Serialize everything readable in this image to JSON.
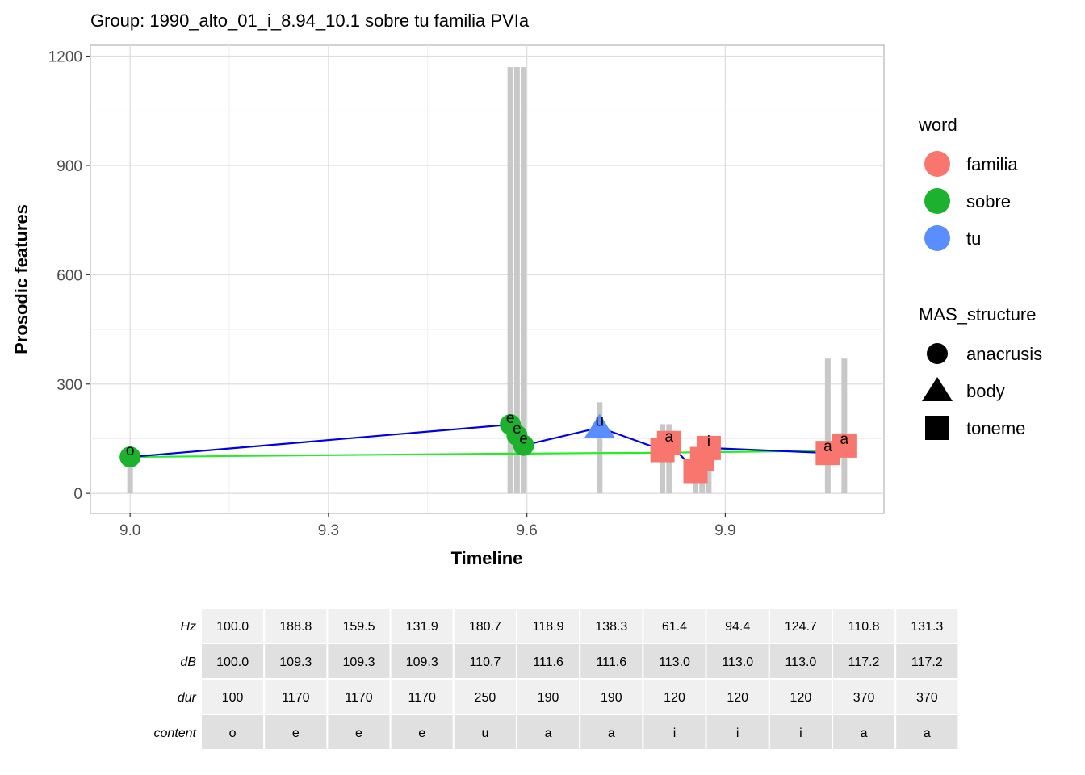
{
  "chart_data": {
    "type": "scatter",
    "title": "Group: 1990_alto_01_i_8.94_10.1 sobre tu familia PVIa",
    "xlabel": "Timeline",
    "ylabel": "Prosodic features",
    "xlim": [
      8.94,
      10.14
    ],
    "ylim": [
      -55,
      1230
    ],
    "xticks": [
      9.0,
      9.3,
      9.6,
      9.9
    ],
    "xtick_labels": [
      "9.0",
      "9.3",
      "9.6",
      "9.9"
    ],
    "yticks": [
      0,
      300,
      600,
      900,
      1200
    ],
    "ytick_labels": [
      "0",
      "300",
      "600",
      "900",
      "1200"
    ],
    "grid": true,
    "points": [
      {
        "x": 9.0,
        "hz": 100.0,
        "db": 100.0,
        "dur": 100,
        "content": "o",
        "word": "sobre",
        "structure": "anacrusis"
      },
      {
        "x": 9.575,
        "hz": 188.8,
        "db": 109.3,
        "dur": 1170,
        "content": "e",
        "word": "sobre",
        "structure": "anacrusis"
      },
      {
        "x": 9.585,
        "hz": 159.5,
        "db": 109.3,
        "dur": 1170,
        "content": "e",
        "word": "sobre",
        "structure": "anacrusis"
      },
      {
        "x": 9.595,
        "hz": 131.9,
        "db": 109.3,
        "dur": 1170,
        "content": "e",
        "word": "sobre",
        "structure": "anacrusis"
      },
      {
        "x": 9.71,
        "hz": 180.7,
        "db": 110.7,
        "dur": 250,
        "content": "u",
        "word": "tu",
        "structure": "body"
      },
      {
        "x": 9.805,
        "hz": 118.9,
        "db": 111.6,
        "dur": 190,
        "content": "a",
        "word": "familia",
        "structure": "toneme"
      },
      {
        "x": 9.815,
        "hz": 138.3,
        "db": 111.6,
        "dur": 190,
        "content": "a",
        "word": "familia",
        "structure": "toneme"
      },
      {
        "x": 9.855,
        "hz": 61.4,
        "db": 113.0,
        "dur": 120,
        "content": "i",
        "word": "familia",
        "structure": "toneme"
      },
      {
        "x": 9.865,
        "hz": 94.4,
        "db": 113.0,
        "dur": 120,
        "content": "i",
        "word": "familia",
        "structure": "toneme"
      },
      {
        "x": 9.875,
        "hz": 124.7,
        "db": 113.0,
        "dur": 120,
        "content": "i",
        "word": "familia",
        "structure": "toneme"
      },
      {
        "x": 10.055,
        "hz": 110.8,
        "db": 117.2,
        "dur": 370,
        "content": "a",
        "word": "familia",
        "structure": "toneme"
      },
      {
        "x": 10.08,
        "hz": 131.3,
        "db": 117.2,
        "dur": 370,
        "content": "a",
        "word": "familia",
        "structure": "toneme"
      }
    ],
    "colors": {
      "familia": "#F8766D",
      "sobre": "#1CB22E",
      "tu": "#5A8DFF",
      "hz_line": "#0000E0",
      "db_line": "#22EE22",
      "bar": "#C8C8C8"
    },
    "legend_word": {
      "title": "word",
      "entries": [
        "familia",
        "sobre",
        "tu"
      ]
    },
    "legend_structure": {
      "title": "MAS_structure",
      "entries": [
        "anacrusis",
        "body",
        "toneme"
      ]
    },
    "table": {
      "rows": [
        {
          "label": "Hz",
          "values": [
            "100.0",
            "188.8",
            "159.5",
            "131.9",
            "180.7",
            "118.9",
            "138.3",
            "61.4",
            "94.4",
            "124.7",
            "110.8",
            "131.3"
          ]
        },
        {
          "label": "dB",
          "values": [
            "100.0",
            "109.3",
            "109.3",
            "109.3",
            "110.7",
            "111.6",
            "111.6",
            "113.0",
            "113.0",
            "113.0",
            "117.2",
            "117.2"
          ]
        },
        {
          "label": "dur",
          "values": [
            "100",
            "1170",
            "1170",
            "1170",
            "250",
            "190",
            "190",
            "120",
            "120",
            "120",
            "370",
            "370"
          ]
        },
        {
          "label": "content",
          "values": [
            "o",
            "e",
            "e",
            "e",
            "u",
            "a",
            "a",
            "i",
            "i",
            "i",
            "a",
            "a"
          ]
        }
      ]
    }
  }
}
